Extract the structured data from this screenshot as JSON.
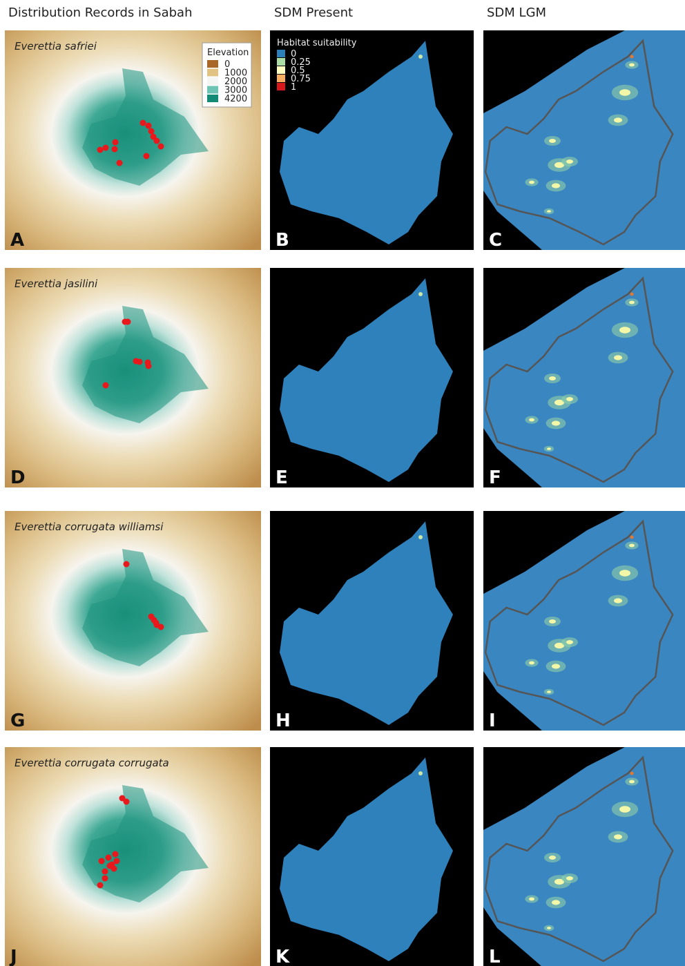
{
  "headers": [
    "Distribution Records in Sabah",
    "SDM Present",
    "SDM LGM"
  ],
  "rows": [
    {
      "species": "Everettia safriei",
      "panels": [
        "A",
        "B",
        "C"
      ]
    },
    {
      "species": "Everettia jasilini",
      "panels": [
        "D",
        "E",
        "F"
      ]
    },
    {
      "species": "Everettia corrugata williamsi",
      "panels": [
        "G",
        "H",
        "I"
      ]
    },
    {
      "species": "Everettia corrugata corrugata",
      "panels": [
        "J",
        "K",
        "L"
      ]
    }
  ],
  "elevation_legend": {
    "title": "Elevation",
    "labels": [
      "0",
      "1000",
      "2000",
      "3000",
      "4200"
    ],
    "colors": [
      "#a8682a",
      "#e0c283",
      "#f4f6f4",
      "#6ec4b4",
      "#138a76"
    ]
  },
  "suitability_legend": {
    "title": "Habitat suitability",
    "labels": [
      "0",
      "0.25",
      "0.5",
      "0.75",
      "1"
    ],
    "colors": [
      "#2c7fb8",
      "#abdda4",
      "#ffffbf",
      "#fdae61",
      "#d7191c"
    ]
  }
}
